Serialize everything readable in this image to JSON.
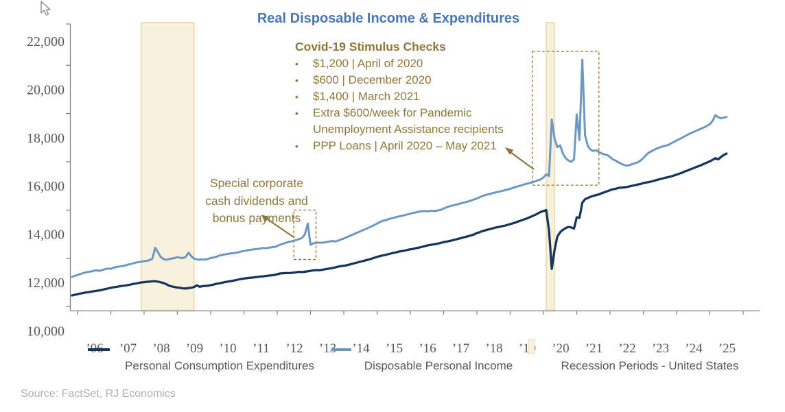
{
  "title": "Real Disposable Income & Expenditures",
  "source": "Source: FactSet, RJ Economics",
  "palette": {
    "title_blue": "#4778B3",
    "pce_navy": "#16365C",
    "dpi_blue": "#6C97C3",
    "recession_fill": "#F7F0DB",
    "recession_border": "#EBDFBC",
    "annotation_olive": "#8E7839",
    "axis_gray": "#7F7F7F",
    "tick_label_gray": "#595959",
    "source_gray": "#AFAFAF"
  },
  "annotations": {
    "covid": {
      "header": "Covid-19 Stimulus Checks",
      "bullets": [
        "$1,200 | April of 2020",
        "$600 | December 2020",
        "$1,400 | March 2021",
        "Extra $600/week for Pandemic Unemployment Assistance recipients",
        "PPP Loans | April 2020 – May 2021"
      ]
    },
    "dividends": {
      "lines": [
        "Special corporate",
        "cash dividends and",
        "bonus payments"
      ]
    }
  },
  "legend": [
    {
      "label": "Personal Consumption Expenditures",
      "type": "line",
      "color_key": "pce_navy"
    },
    {
      "label": "Disposable Personal Income",
      "type": "line",
      "color_key": "dpi_blue"
    },
    {
      "label": "Recession Periods - United States",
      "type": "box",
      "color_key": "recession_fill"
    }
  ],
  "chart_data": {
    "type": "line",
    "title": "Real Disposable Income & Expenditures",
    "frequency": "monthly",
    "start_month": "2005-11",
    "y_axis": {
      "labels": [
        {
          "v": 22000,
          "label": "22,000"
        },
        {
          "v": 20000,
          "label": "20,000"
        },
        {
          "v": 18000,
          "label": "18,000"
        },
        {
          "v": 16000,
          "label": "16,000"
        },
        {
          "v": 14000,
          "label": "14,000"
        },
        {
          "v": 12000,
          "label": "12,000"
        },
        {
          "v": 10000,
          "label": "10,000"
        }
      ],
      "minor_tick_values": [
        21000,
        19000,
        17000,
        15000,
        13000,
        11000
      ],
      "major_step": 2000
    },
    "x_axis": {
      "labels": [
        "’06",
        "’07",
        "’08",
        "’09",
        "’10",
        "’11",
        "’12",
        "’13",
        "’14",
        "’15",
        "’16",
        "’17",
        "’18",
        "’19",
        "’20",
        "’21",
        "’22",
        "’23",
        "’24",
        "’25"
      ],
      "start_year": 2006
    },
    "recessions": [
      {
        "start": "2007-12",
        "end": "2009-07"
      },
      {
        "start": "2020-02",
        "end": "2020-05"
      }
    ],
    "highlight_boxes": [
      {
        "x_start": "2012-07",
        "x_end": "2013-03",
        "v_top": 15000,
        "v_bottom": 12950
      },
      {
        "x_start": "2019-09",
        "x_end": "2021-09",
        "v_top": 21570,
        "v_bottom": 16030
      }
    ],
    "series": [
      {
        "name": "Personal Consumption Expenditures",
        "color_key": "pce_navy",
        "values": [
          11460,
          11490,
          11515,
          11540,
          11560,
          11585,
          11600,
          11620,
          11640,
          11655,
          11670,
          11700,
          11725,
          11750,
          11775,
          11800,
          11815,
          11835,
          11855,
          11870,
          11890,
          11910,
          11935,
          11955,
          11980,
          12000,
          12010,
          12025,
          12035,
          12045,
          12050,
          12030,
          12005,
          11975,
          11925,
          11865,
          11835,
          11810,
          11790,
          11775,
          11755,
          11750,
          11765,
          11780,
          11810,
          11880,
          11820,
          11845,
          11855,
          11865,
          11890,
          11910,
          11940,
          11960,
          11985,
          12010,
          12030,
          12050,
          12070,
          12095,
          12120,
          12145,
          12160,
          12175,
          12190,
          12200,
          12215,
          12230,
          12245,
          12255,
          12270,
          12285,
          12295,
          12310,
          12340,
          12370,
          12380,
          12390,
          12385,
          12395,
          12410,
          12425,
          12440,
          12430,
          12445,
          12460,
          12480,
          12500,
          12510,
          12505,
          12520,
          12540,
          12560,
          12580,
          12600,
          12625,
          12655,
          12680,
          12690,
          12710,
          12740,
          12770,
          12800,
          12830,
          12860,
          12890,
          12920,
          12950,
          12985,
          13020,
          13060,
          13090,
          13120,
          13140,
          13170,
          13200,
          13230,
          13250,
          13280,
          13300,
          13320,
          13350,
          13370,
          13390,
          13420,
          13440,
          13470,
          13500,
          13530,
          13550,
          13570,
          13590,
          13615,
          13640,
          13670,
          13690,
          13715,
          13740,
          13770,
          13800,
          13830,
          13860,
          13890,
          13920,
          13955,
          13990,
          14050,
          14080,
          14130,
          14160,
          14190,
          14220,
          14250,
          14280,
          14300,
          14330,
          14350,
          14380,
          14420,
          14450,
          14490,
          14530,
          14570,
          14610,
          14650,
          14700,
          14750,
          14800,
          14860,
          14920,
          14960,
          15000,
          14150,
          12560,
          13350,
          13900,
          14080,
          14180,
          14250,
          14300,
          14280,
          14230,
          14700,
          14680,
          15300,
          15450,
          15500,
          15550,
          15590,
          15620,
          15650,
          15700,
          15740,
          15780,
          15820,
          15860,
          15880,
          15915,
          15930,
          15940,
          15955,
          15980,
          16005,
          16030,
          16055,
          16080,
          16120,
          16140,
          16160,
          16185,
          16220,
          16250,
          16280,
          16310,
          16340,
          16365,
          16395,
          16430,
          16470,
          16505,
          16550,
          16600,
          16640,
          16690,
          16730,
          16780,
          16820,
          16870,
          16920,
          16970,
          17020,
          17080,
          17150,
          17100,
          17200,
          17280,
          17340
        ]
      },
      {
        "name": "Disposable Personal Income",
        "color_key": "dpi_blue",
        "values": [
          12230,
          12270,
          12310,
          12350,
          12380,
          12420,
          12440,
          12455,
          12490,
          12500,
          12480,
          12520,
          12550,
          12580,
          12560,
          12610,
          12640,
          12660,
          12680,
          12700,
          12730,
          12760,
          12790,
          12820,
          12840,
          12860,
          12880,
          12900,
          12925,
          12985,
          13440,
          13250,
          13050,
          12970,
          12940,
          12970,
          12990,
          13010,
          13050,
          13020,
          13010,
          13060,
          13230,
          13090,
          12990,
          12960,
          12940,
          12960,
          12950,
          12975,
          13010,
          13035,
          13060,
          13110,
          13140,
          13160,
          13180,
          13200,
          13210,
          13230,
          13250,
          13280,
          13300,
          13325,
          13350,
          13360,
          13380,
          13390,
          13410,
          13430,
          13420,
          13440,
          13455,
          13470,
          13510,
          13560,
          13600,
          13640,
          13680,
          13700,
          13730,
          13760,
          13800,
          13850,
          14000,
          14440,
          13560,
          13620,
          13640,
          13650,
          13645,
          13660,
          13680,
          13700,
          13720,
          13695,
          13735,
          13780,
          13820,
          13870,
          13920,
          13970,
          14020,
          14070,
          14120,
          14170,
          14220,
          14270,
          14325,
          14380,
          14440,
          14500,
          14550,
          14580,
          14620,
          14650,
          14680,
          14710,
          14740,
          14765,
          14790,
          14820,
          14850,
          14880,
          14900,
          14930,
          14950,
          14960,
          14950,
          14960,
          14970,
          14960,
          14985,
          15010,
          15060,
          15110,
          15150,
          15180,
          15210,
          15240,
          15270,
          15300,
          15330,
          15360,
          15400,
          15440,
          15480,
          15530,
          15580,
          15620,
          15650,
          15680,
          15710,
          15740,
          15760,
          15790,
          15820,
          15850,
          15880,
          15920,
          15960,
          15990,
          16020,
          16060,
          16090,
          16120,
          16150,
          16190,
          16230,
          16270,
          16350,
          16480,
          16410,
          18750,
          17950,
          17600,
          17680,
          17350,
          17150,
          17050,
          17000,
          17100,
          18960,
          17900,
          21230,
          18100,
          17650,
          17500,
          17450,
          17480,
          17400,
          17350,
          17300,
          17280,
          17200,
          17100,
          17050,
          16980,
          16920,
          16870,
          16840,
          16860,
          16900,
          16940,
          16980,
          17050,
          17150,
          17280,
          17380,
          17440,
          17500,
          17560,
          17600,
          17640,
          17665,
          17700,
          17760,
          17820,
          17880,
          17940,
          18000,
          18060,
          18120,
          18180,
          18230,
          18280,
          18330,
          18380,
          18430,
          18490,
          18560,
          18700,
          18930,
          18850,
          18800,
          18830,
          18860
        ]
      }
    ]
  }
}
